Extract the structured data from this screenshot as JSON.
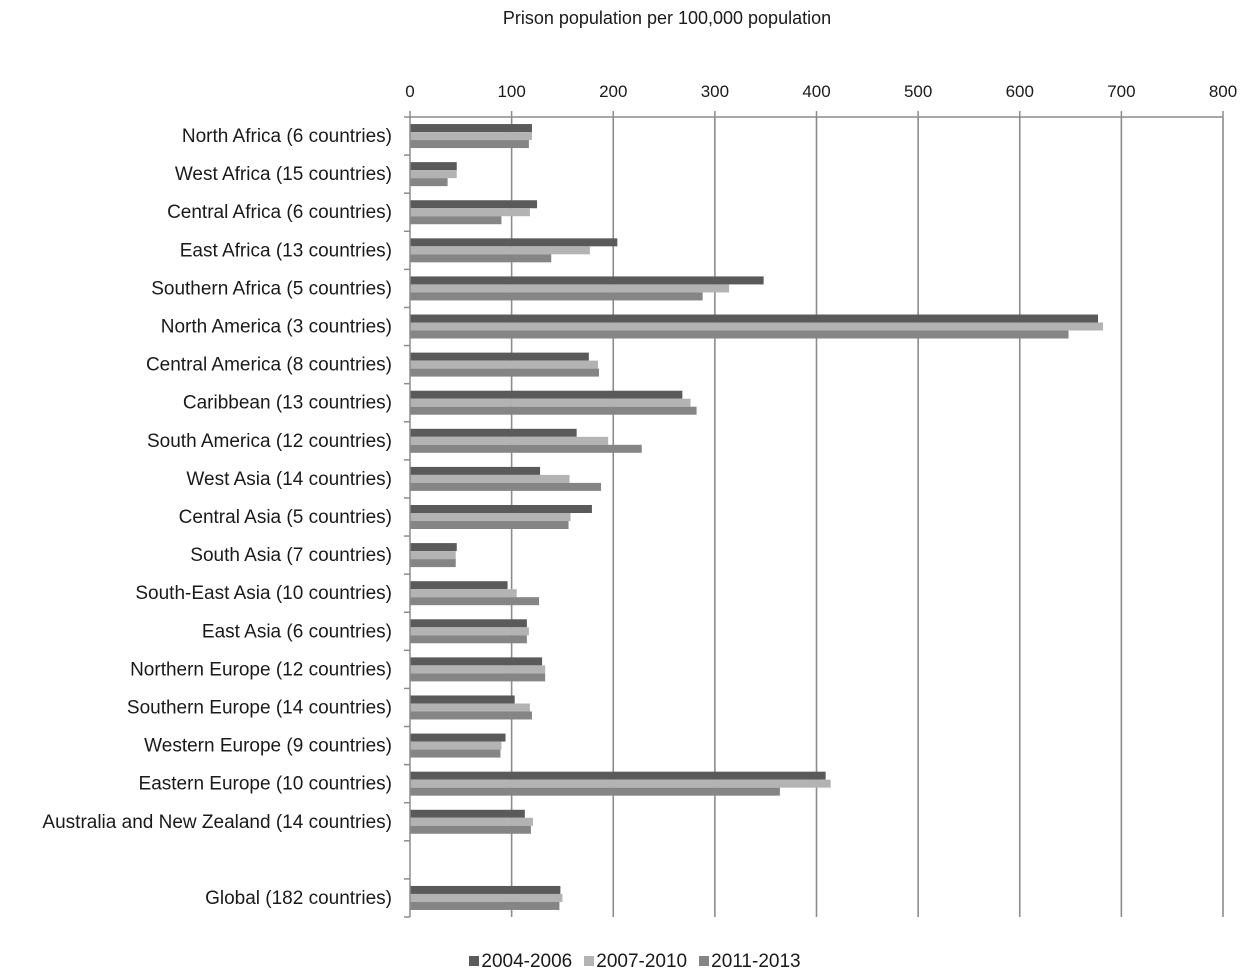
{
  "chart_data": {
    "type": "bar",
    "orientation": "horizontal",
    "title": "Prison population per 100,000 population",
    "xlim": [
      0,
      800
    ],
    "x_ticks": [
      "0",
      "100",
      "200",
      "300",
      "400",
      "500",
      "600",
      "700",
      "800"
    ],
    "axis_position": "top",
    "grid": true,
    "legend_position": "bottom",
    "categories": [
      "North Africa (6 countries)",
      "West Africa (15 countries)",
      "Central Africa (6 countries)",
      "East Africa (13 countries)",
      "Southern Africa (5 countries)",
      "North America (3 countries)",
      "Central America (8 countries)",
      "Caribbean (13 countries)",
      "South America (12 countries)",
      "West Asia (14 countries)",
      "Central Asia (5 countries)",
      "South Asia (7 countries)",
      "South-East Asia (10 countries)",
      "East Asia (6 countries)",
      "Northern Europe (12 countries)",
      "Southern Europe (14 countries)",
      "Western Europe (9 countries)",
      "Eastern Europe (10 countries)",
      "Australia and New Zealand (14 countries)",
      "",
      "Global (182 countries)"
    ],
    "series": [
      {
        "name": "2004-2006",
        "color": "#5a5a5a",
        "values": [
          120,
          46,
          125,
          204,
          348,
          677,
          176,
          268,
          164,
          128,
          179,
          46,
          96,
          115,
          130,
          103,
          94,
          409,
          113,
          null,
          148
        ]
      },
      {
        "name": "2007-2010",
        "color": "#b3b3b3",
        "values": [
          120,
          46,
          118,
          177,
          314,
          682,
          185,
          276,
          195,
          157,
          158,
          45,
          105,
          117,
          133,
          118,
          90,
          414,
          121,
          null,
          150
        ]
      },
      {
        "name": "2011-2013",
        "color": "#858585",
        "values": [
          117,
          37,
          90,
          139,
          288,
          648,
          186,
          282,
          228,
          188,
          156,
          45,
          127,
          115,
          133,
          120,
          89,
          364,
          119,
          null,
          147
        ]
      }
    ]
  }
}
